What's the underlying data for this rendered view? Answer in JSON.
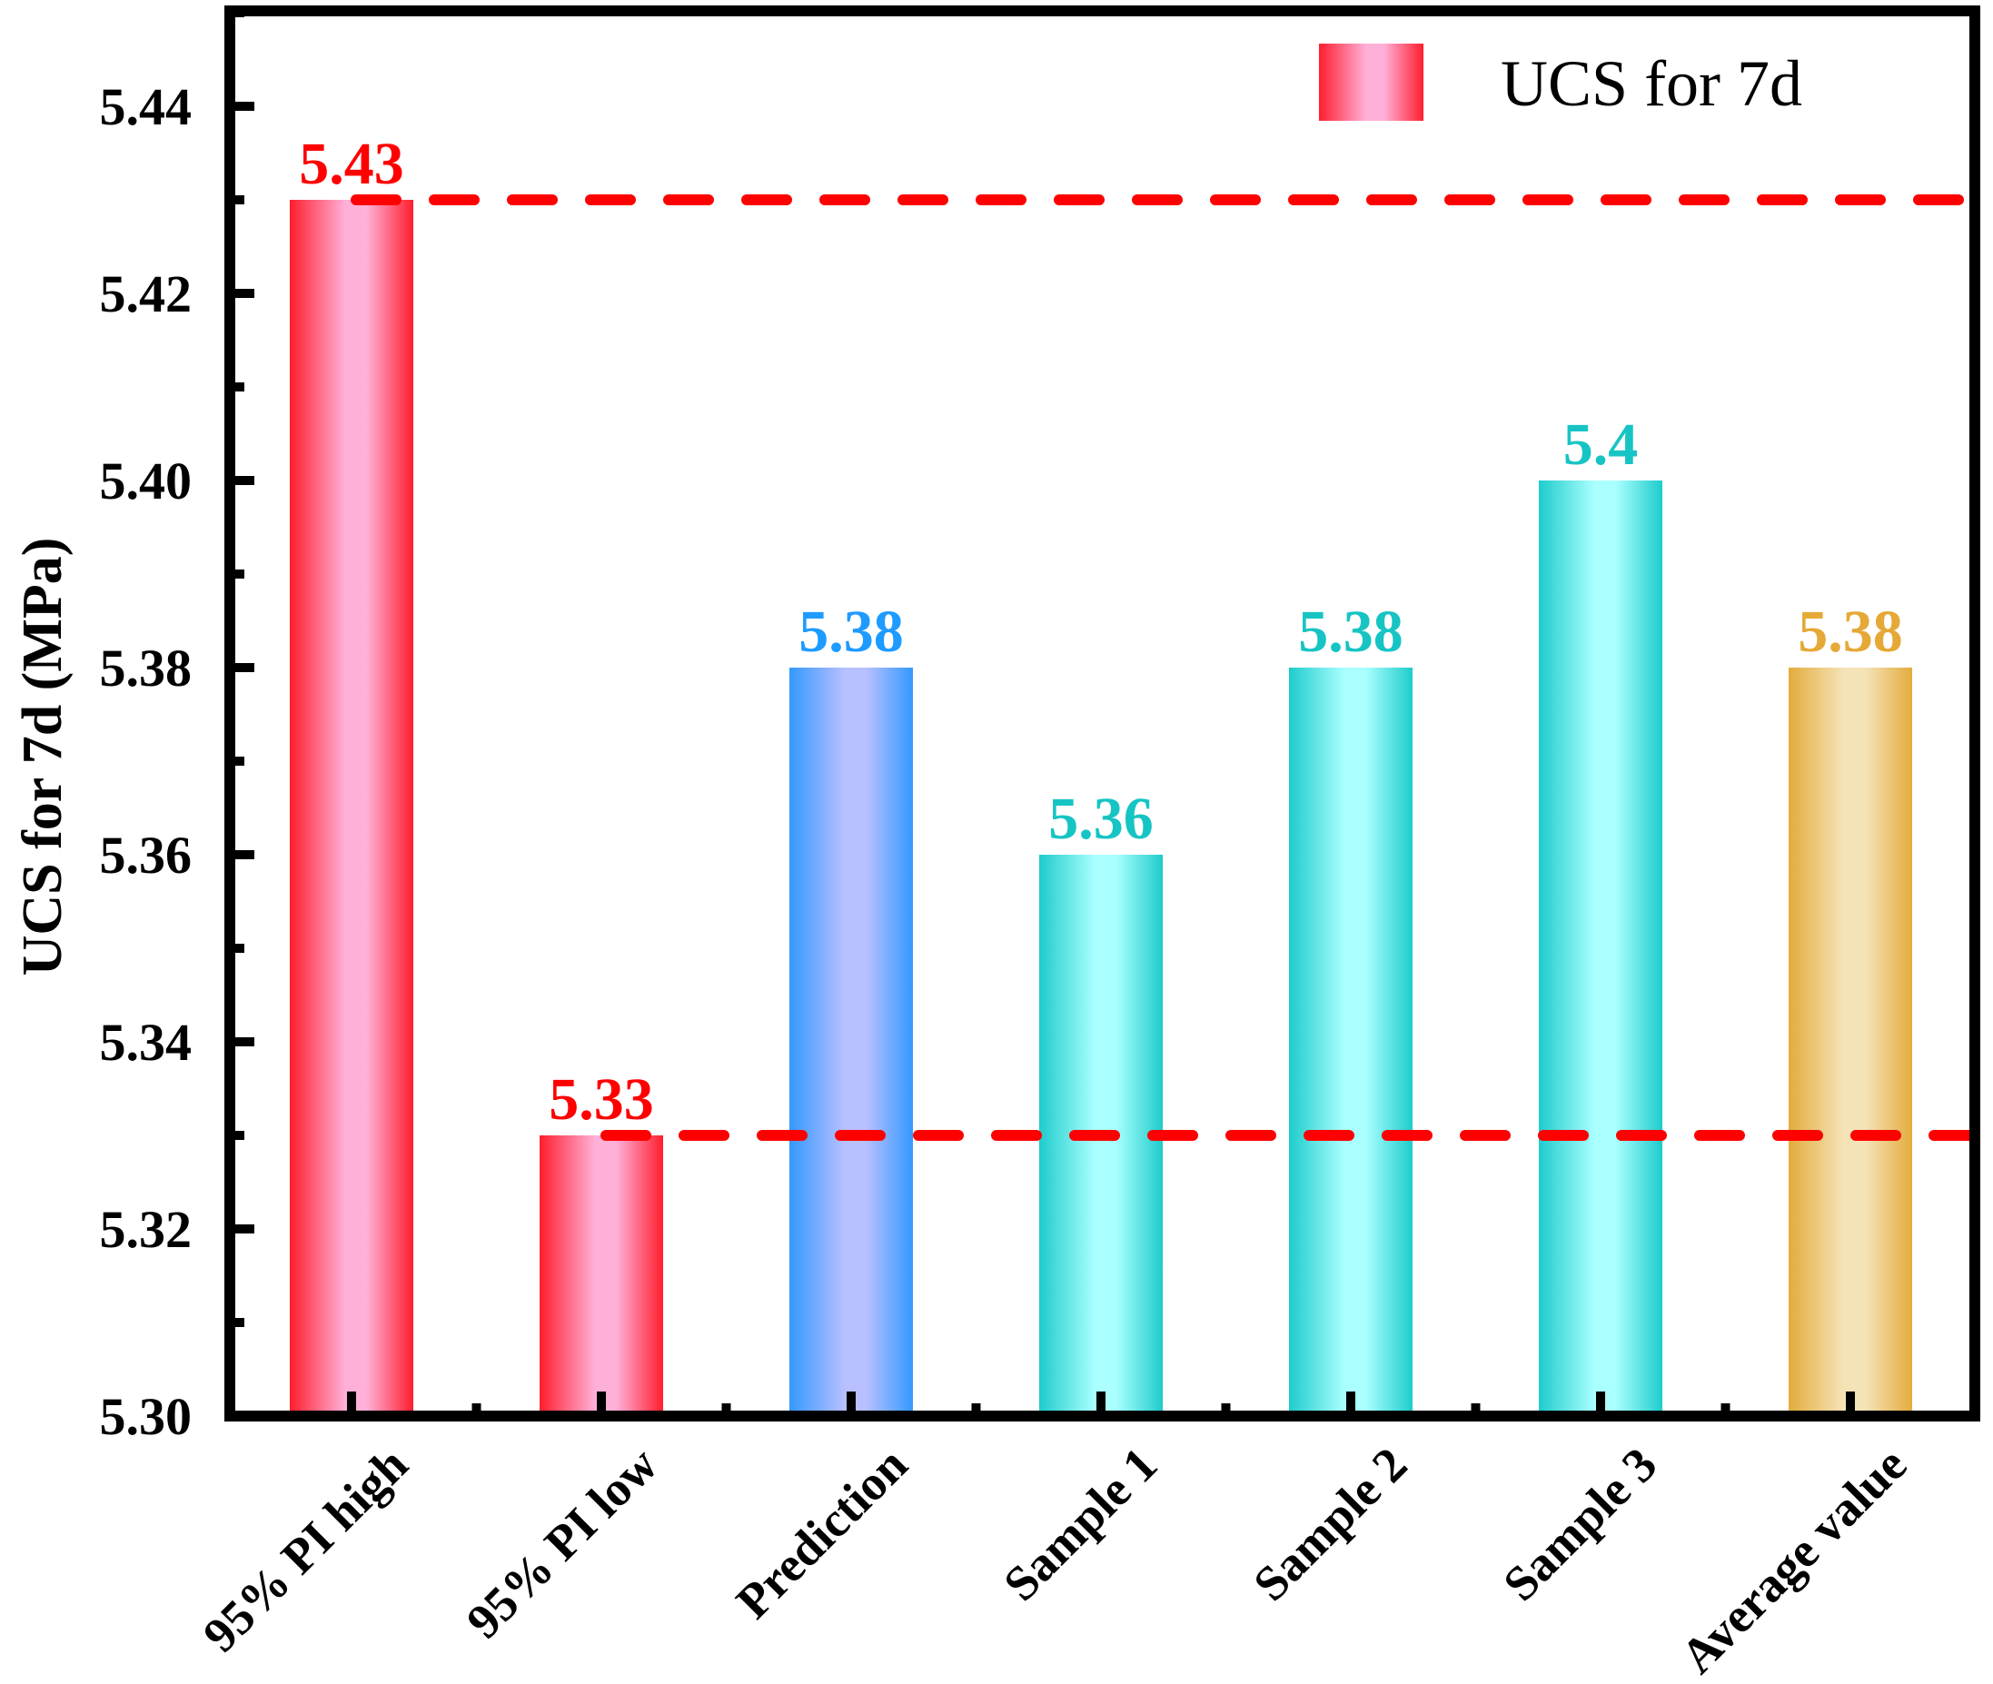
{
  "chart_data": {
    "type": "bar",
    "title": "",
    "xlabel": "",
    "ylabel": "UCS for 7d (MPa)",
    "ylim": [
      5.3,
      5.45
    ],
    "yticks": [
      "5.30",
      "5.32",
      "5.34",
      "5.36",
      "5.38",
      "5.40",
      "5.42",
      "5.44"
    ],
    "ytick_values": [
      5.3,
      5.32,
      5.34,
      5.36,
      5.38,
      5.4,
      5.42,
      5.44
    ],
    "grid": false,
    "categories": [
      "95% PI high",
      "95% PI low",
      "Prediction",
      "Sample 1",
      "Sample 2",
      "Sample 3",
      "Average value"
    ],
    "values": [
      5.43,
      5.33,
      5.38,
      5.36,
      5.38,
      5.4,
      5.38
    ],
    "data_labels": [
      "5.43",
      "5.33",
      "5.38",
      "5.36",
      "5.38",
      "5.4",
      "5.38"
    ],
    "bar_colors": [
      {
        "edge": "#ff1e2d",
        "center": "#ffb0d8",
        "label": "#ff0000"
      },
      {
        "edge": "#ff1e2d",
        "center": "#ffb0d8",
        "label": "#ff0000"
      },
      {
        "edge": "#3399ff",
        "center": "#b8c0ff",
        "label": "#1e9bff"
      },
      {
        "edge": "#1ecccc",
        "center": "#aaffff",
        "label": "#17c4c4"
      },
      {
        "edge": "#1ecccc",
        "center": "#aaffff",
        "label": "#17c4c4"
      },
      {
        "edge": "#1ecccc",
        "center": "#aaffff",
        "label": "#17c4c4"
      },
      {
        "edge": "#e3ac3c",
        "center": "#f5e3b8",
        "label": "#e5a937"
      }
    ],
    "reference_lines": [
      {
        "name": "95% PI high",
        "value": 5.43,
        "color": "#ff0000",
        "style": "dashed"
      },
      {
        "name": "95% PI low",
        "value": 5.33,
        "color": "#ff0000",
        "style": "dashed"
      }
    ],
    "legend": {
      "placement": "top-right",
      "entries": [
        {
          "label": "UCS for 7d",
          "edge": "#ff1e2d",
          "center": "#ffb0d8"
        }
      ]
    }
  }
}
